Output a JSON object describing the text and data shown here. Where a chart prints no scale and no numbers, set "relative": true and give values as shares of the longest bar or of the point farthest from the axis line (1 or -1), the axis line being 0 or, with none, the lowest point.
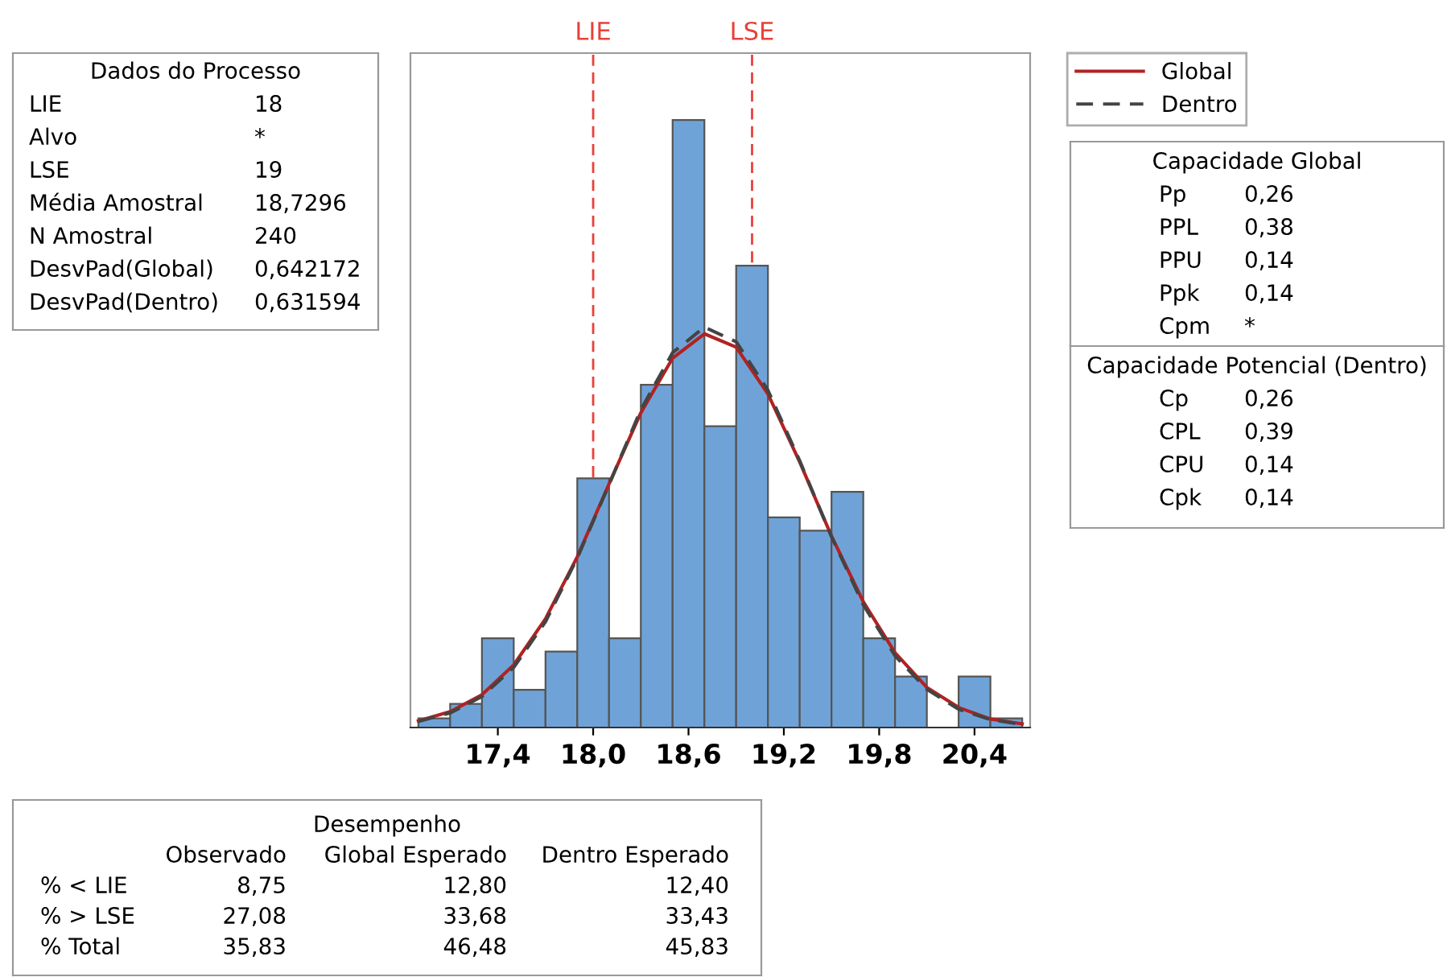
{
  "chart_data": [
    {
      "type": "histogram",
      "relative": true,
      "bins": [
        16.9,
        17.1,
        17.3,
        17.5,
        17.7,
        17.9,
        18.1,
        18.3,
        18.5,
        18.7,
        18.9,
        19.1,
        19.3,
        19.5,
        19.7,
        19.9,
        20.1,
        20.3,
        20.5,
        20.7
      ],
      "values": [
        0.015,
        0.039,
        0.147,
        0.062,
        0.125,
        0.41,
        0.147,
        0.564,
        1,
        0.496,
        0.76,
        0.346,
        0.324,
        0.388,
        0.147,
        0.084,
        0,
        0.084,
        0.015
      ],
      "color": "#6fa3d8",
      "xlim": [
        16.85,
        20.75
      ],
      "xticks": [
        {
          "value": 17.4,
          "label": "17,4"
        },
        {
          "value": 18.0,
          "label": "18,0"
        },
        {
          "value": 18.6,
          "label": "18,6"
        },
        {
          "value": 19.2,
          "label": "19,2"
        },
        {
          "value": 19.8,
          "label": "19,8"
        },
        {
          "value": 20.4,
          "label": "20,4"
        }
      ],
      "series": [
        {
          "name": "Global",
          "type": "line",
          "color": "#b22222",
          "line_style": "solid",
          "x": [
            16.9,
            17.1,
            17.3,
            17.5,
            17.7,
            17.9,
            18.1,
            18.3,
            18.5,
            18.7,
            18.9,
            19.1,
            19.3,
            19.5,
            19.7,
            19.9,
            20.1,
            20.3,
            20.5,
            20.7
          ],
          "values": [
            0.011,
            0.026,
            0.054,
            0.103,
            0.179,
            0.281,
            0.401,
            0.518,
            0.608,
            0.648,
            0.626,
            0.549,
            0.437,
            0.315,
            0.207,
            0.123,
            0.066,
            0.033,
            0.014,
            0.006
          ]
        },
        {
          "name": "Dentro",
          "type": "line",
          "color": "#444444",
          "line_style": "dashed",
          "x": [
            16.9,
            17.1,
            17.3,
            17.5,
            17.7,
            17.9,
            18.1,
            18.3,
            18.5,
            18.7,
            18.9,
            19.1,
            19.3,
            19.5,
            19.7,
            19.9,
            20.1,
            20.3,
            20.5,
            20.7
          ],
          "values": [
            0.01,
            0.024,
            0.051,
            0.099,
            0.174,
            0.279,
            0.4,
            0.523,
            0.617,
            0.659,
            0.635,
            0.555,
            0.439,
            0.314,
            0.202,
            0.118,
            0.063,
            0.03,
            0.013,
            0.005
          ]
        }
      ],
      "ref_lines": [
        {
          "axis": "x",
          "value": 18,
          "label": "LIE",
          "color": "#e8403a",
          "line_style": "dashed"
        },
        {
          "axis": "x",
          "value": 19,
          "label": "LSE",
          "color": "#e8403a",
          "line_style": "dashed"
        }
      ],
      "legend": "top right",
      "grid": false
    },
    {
      "type": "other",
      "title": "Dados do Processo",
      "y_categories": [
        "LIE",
        "Alvo",
        "LSE",
        "Média Amostral",
        "N Amostral",
        "DesvPad(Global)",
        "DesvPad(Dentro)"
      ],
      "cell_labels": [
        [
          "18"
        ],
        [
          "*"
        ],
        [
          "19"
        ],
        [
          "18,7296"
        ],
        [
          "240"
        ],
        [
          "0,642172"
        ],
        [
          "0,631594"
        ]
      ]
    },
    {
      "type": "other",
      "title": "Capacidade Global",
      "y_categories": [
        "Pp",
        "PPL",
        "PPU",
        "Ppk",
        "Cpm"
      ],
      "cell_labels": [
        [
          "0,26"
        ],
        [
          "0,38"
        ],
        [
          "0,14"
        ],
        [
          "0,14"
        ],
        [
          "*"
        ]
      ]
    },
    {
      "type": "other",
      "title": "Capacidade Potencial (Dentro)",
      "y_categories": [
        "Cp",
        "CPL",
        "CPU",
        "Cpk"
      ],
      "cell_labels": [
        [
          "0,26"
        ],
        [
          "0,39"
        ],
        [
          "0,14"
        ],
        [
          "0,14"
        ]
      ]
    },
    {
      "type": "other",
      "title": "Desempenho",
      "categories": [
        "Observado",
        "Global Esperado",
        "Dentro Esperado"
      ],
      "y_categories": [
        "% < LIE",
        "% > LSE",
        "% Total"
      ],
      "cell_labels": [
        [
          "8,75",
          "12,80",
          "12,40"
        ],
        [
          "27,08",
          "33,68",
          "33,43"
        ],
        [
          "35,83",
          "46,48",
          "45,83"
        ]
      ]
    }
  ]
}
